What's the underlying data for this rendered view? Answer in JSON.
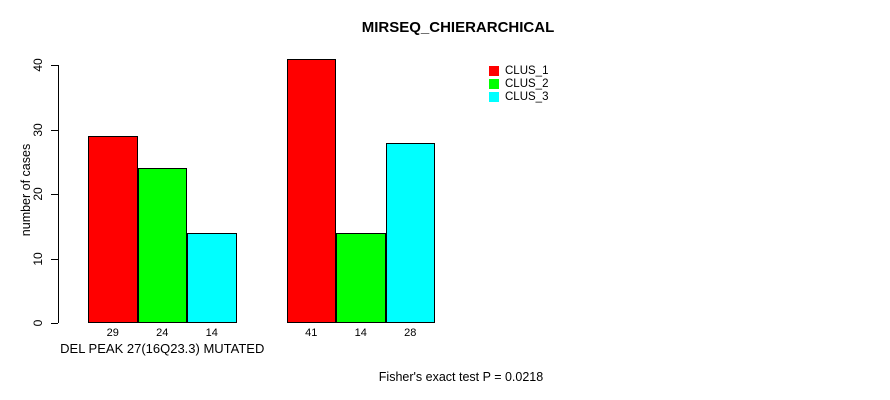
{
  "chart_data": {
    "type": "bar",
    "title": "MIRSEQ_CHIERARCHICAL",
    "ylabel": "number of cases",
    "xlabel": "",
    "annotation": "Fisher's exact test P = 0.0218",
    "ylim": [
      0,
      40
    ],
    "yticks": [
      0,
      10,
      20,
      30,
      40
    ],
    "grid": false,
    "legend_position": "top-right",
    "background_color": "#ffffff",
    "bar_border_color": "#000000",
    "categories": [
      "DEL PEAK 27(16Q23.3) MUTATED",
      ""
    ],
    "series": [
      {
        "name": "CLUS_1",
        "color": "#ff0000",
        "values": [
          29,
          41
        ]
      },
      {
        "name": "CLUS_2",
        "color": "#00ff00",
        "values": [
          24,
          14
        ]
      },
      {
        "name": "CLUS_3",
        "color": "#00ffff",
        "values": [
          14,
          28
        ]
      }
    ],
    "bar_value_labels": [
      [
        29,
        24,
        14
      ],
      [
        41,
        14,
        28
      ]
    ]
  }
}
